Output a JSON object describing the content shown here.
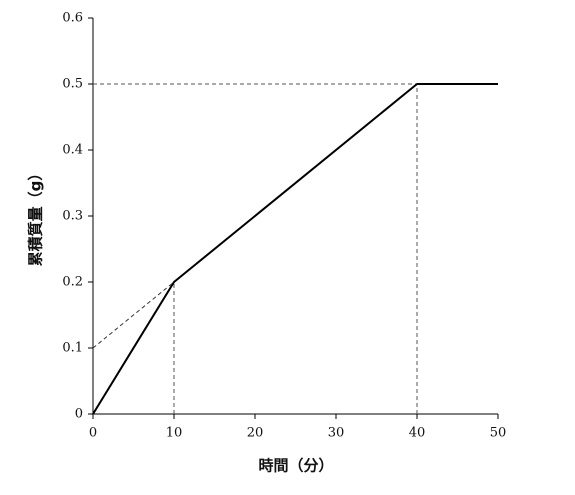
{
  "chart_data": {
    "type": "line",
    "xlabel": "時間（分）",
    "ylabel": "累積質量（g）",
    "series": [
      {
        "x": [
          0,
          10,
          40,
          50
        ],
        "values": [
          0,
          0.2,
          0.5,
          0.5
        ],
        "color": "#000000",
        "dashed": false
      },
      {
        "x": [
          0,
          10
        ],
        "values": [
          0.1,
          0.2
        ],
        "color": "#333333",
        "dashed": true
      }
    ],
    "guides": [
      {
        "x": 10,
        "y": 0.2,
        "lines": "v"
      },
      {
        "x": 40,
        "y": 0.5,
        "lines": "vh"
      }
    ],
    "xlim": [
      0,
      50
    ],
    "xticks": [
      0,
      10,
      20,
      30,
      40,
      50
    ],
    "ylim": [
      0,
      0.6
    ],
    "yticks": [
      0,
      0.1,
      0.2,
      0.3,
      0.4,
      0.5,
      0.6
    ],
    "grid": false
  }
}
